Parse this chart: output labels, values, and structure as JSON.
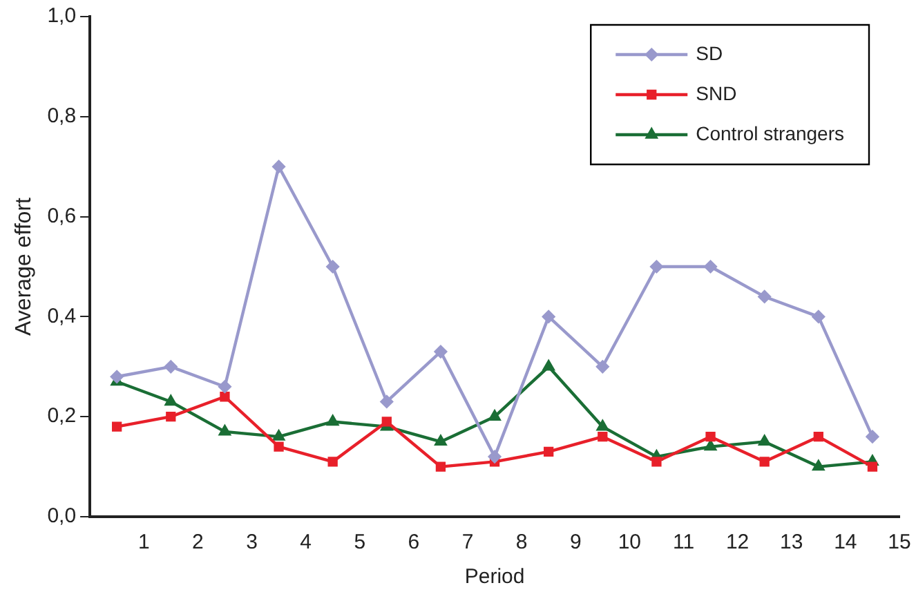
{
  "chart_data": {
    "type": "line",
    "xlabel": "Period",
    "ylabel": "Average effort",
    "x": [
      0.5,
      1.5,
      2.5,
      3.5,
      4.5,
      5.5,
      6.5,
      7.5,
      8.5,
      9.5,
      10.5,
      11.5,
      12.5,
      13.5,
      14.5
    ],
    "xlim": [
      0,
      15
    ],
    "xticks": [
      1,
      2,
      3,
      4,
      5,
      6,
      7,
      8,
      9,
      10,
      11,
      12,
      13,
      14,
      15
    ],
    "ylim": [
      0,
      1
    ],
    "yticks": [
      {
        "value": 0,
        "label": "0,0"
      },
      {
        "value": 0.2,
        "label": "0,2"
      },
      {
        "value": 0.4,
        "label": "0,4"
      },
      {
        "value": 0.6,
        "label": "0,6"
      },
      {
        "value": 0.8,
        "label": "0,8"
      },
      {
        "value": 1,
        "label": "1,0"
      }
    ],
    "grid": false,
    "legend": "top right",
    "line_style": "solid",
    "series": [
      {
        "name": "SD",
        "color": "#9999cc",
        "marker": "diamond",
        "values": [
          0.28,
          0.3,
          0.26,
          0.7,
          0.5,
          0.23,
          0.33,
          0.12,
          0.4,
          0.3,
          0.5,
          0.5,
          0.44,
          0.4,
          0.16
        ]
      },
      {
        "name": "SND",
        "color": "#e8202a",
        "marker": "square",
        "values": [
          0.18,
          0.2,
          0.24,
          0.14,
          0.11,
          0.19,
          0.1,
          0.11,
          0.13,
          0.16,
          0.11,
          0.16,
          0.11,
          0.16,
          0.1
        ]
      },
      {
        "name": "Control strangers",
        "color": "#1a6e35",
        "marker": "triangle",
        "values": [
          0.27,
          0.23,
          0.17,
          0.16,
          0.19,
          0.18,
          0.15,
          0.2,
          0.3,
          0.18,
          0.12,
          0.14,
          0.15,
          0.1,
          0.11
        ]
      }
    ]
  }
}
